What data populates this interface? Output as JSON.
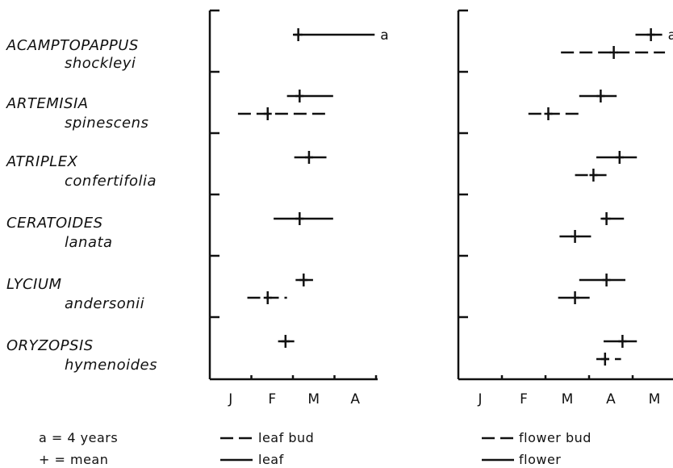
{
  "chart_data": [
    {
      "type": "range",
      "panel": "left",
      "title": "",
      "xlabel": "",
      "ylabel": "",
      "x_tick_labels": [
        "J",
        "F",
        "M",
        "A"
      ],
      "xlim": [
        "Jan 1",
        "Apr 30"
      ],
      "rows": [
        {
          "genus": "ACAMPTOPAPPUS",
          "species": "shockleyi",
          "series": [
            {
              "name": "leaf",
              "style": "solid",
              "start": "Mar 1",
              "end": "Apr 30",
              "mean": "Mar 5",
              "annotation": "a"
            }
          ]
        },
        {
          "genus": "ARTEMISIA",
          "species": "spinescens",
          "series": [
            {
              "name": "leaf",
              "style": "solid",
              "start": "Feb 25",
              "end": "Mar 31",
              "mean": "Mar 6"
            },
            {
              "name": "leaf bud",
              "style": "dashed",
              "start": "Jan 22",
              "end": "Mar 27",
              "mean": "Feb 12"
            }
          ]
        },
        {
          "genus": "ATRIPLEX",
          "species": "confertifolia",
          "series": [
            {
              "name": "leaf",
              "style": "solid",
              "start": "Mar 2",
              "end": "Mar 26",
              "mean": "Mar 13"
            }
          ]
        },
        {
          "genus": "CERATOIDES",
          "species": "lanata",
          "series": [
            {
              "name": "leaf",
              "style": "solid",
              "start": "Feb 16",
              "end": "Mar 31",
              "mean": "Mar 6"
            }
          ]
        },
        {
          "genus": "LYCIUM",
          "species": "andersonii",
          "series": [
            {
              "name": "leaf",
              "style": "solid",
              "start": "Mar 3",
              "end": "Mar 16",
              "mean": "Mar 9"
            },
            {
              "name": "leaf bud",
              "style": "dashed",
              "start": "Jan 29",
              "end": "Feb 25",
              "mean": "Feb 12"
            }
          ]
        },
        {
          "genus": "ORYZOPSIS",
          "species": "hymenoides",
          "series": [
            {
              "name": "leaf",
              "style": "solid",
              "start": "Feb 19",
              "end": "Mar 2",
              "mean": "Feb 24"
            }
          ]
        }
      ]
    },
    {
      "type": "range",
      "panel": "right",
      "title": "",
      "xlabel": "",
      "ylabel": "",
      "x_tick_labels": [
        "J",
        "F",
        "M",
        "A",
        "M"
      ],
      "xlim": [
        "Jan 1",
        "May 31"
      ],
      "rows": [
        {
          "genus": "ACAMPTOPAPPUS",
          "species": "shockleyi",
          "series": [
            {
              "name": "flower",
              "style": "solid",
              "start": "May 3",
              "end": "May 22",
              "mean": "May 14",
              "annotation": "a"
            },
            {
              "name": "flower bud",
              "style": "dashed",
              "start": "Mar 12",
              "end": "May 24",
              "mean": "Apr 18"
            }
          ]
        },
        {
          "genus": "ARTEMISIA",
          "species": "spinescens",
          "series": [
            {
              "name": "flower",
              "style": "solid",
              "start": "Mar 25",
              "end": "Apr 20",
              "mean": "Apr 9"
            },
            {
              "name": "flower bud",
              "style": "dashed",
              "start": "Feb 18",
              "end": "Mar 27",
              "mean": "Mar 3"
            }
          ]
        },
        {
          "genus": "ATRIPLEX",
          "species": "confertifolia",
          "series": [
            {
              "name": "flower",
              "style": "solid",
              "start": "Apr 6",
              "end": "May 4",
              "mean": "Apr 22"
            },
            {
              "name": "flower bud",
              "style": "dashed",
              "start": "Mar 22",
              "end": "Apr 14",
              "mean": "Apr 4"
            }
          ]
        },
        {
          "genus": "CERATOIDES",
          "species": "lanata",
          "series": [
            {
              "name": "flower",
              "style": "solid",
              "start": "Apr 9",
              "end": "Apr 25",
              "mean": "Apr 13"
            },
            {
              "name": "flower bud",
              "style": "dashed",
              "start": "Mar 11",
              "end": "Apr 5",
              "mean": "Mar 22"
            }
          ]
        },
        {
          "genus": "LYCIUM",
          "species": "andersonii",
          "series": [
            {
              "name": "flower",
              "style": "solid",
              "start": "Mar 25",
              "end": "Apr 26",
              "mean": "Apr 13"
            },
            {
              "name": "flower bud",
              "style": "dashed",
              "start": "Mar 10",
              "end": "Apr 5",
              "mean": "Mar 22"
            }
          ]
        },
        {
          "genus": "ORYZOPSIS",
          "species": "hymenoides",
          "series": [
            {
              "name": "flower",
              "style": "solid",
              "start": "Apr 11",
              "end": "May 4",
              "mean": "Apr 24"
            },
            {
              "name": "flower bud",
              "style": "dashed",
              "start": "Apr 6",
              "end": "Apr 23",
              "mean": "Apr 12"
            }
          ]
        }
      ]
    }
  ],
  "legend": {
    "notes": [
      "a = 4 years",
      "+ = mean"
    ],
    "left": [
      {
        "style": "dashed",
        "label": "leaf bud"
      },
      {
        "style": "solid",
        "label": "leaf"
      }
    ],
    "right": [
      {
        "style": "dashed",
        "label": "flower bud"
      },
      {
        "style": "solid",
        "label": "flower"
      }
    ]
  }
}
